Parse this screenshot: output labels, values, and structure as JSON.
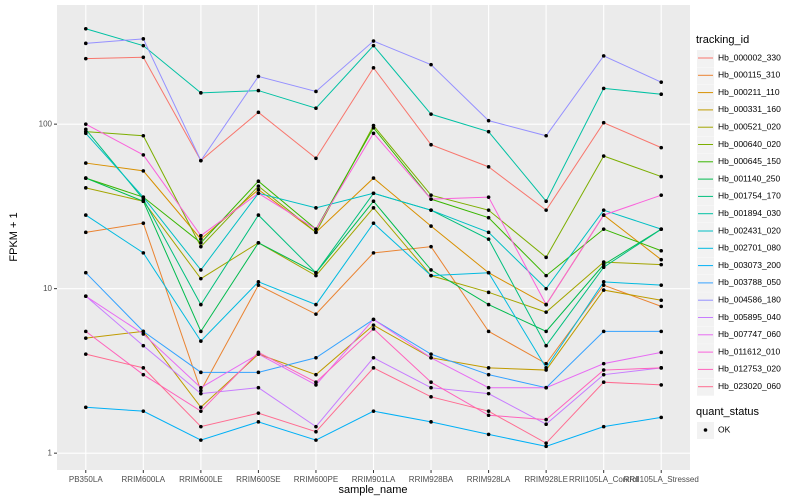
{
  "chart_data": {
    "type": "line",
    "x_label": "sample_name",
    "y_label": "FPKM + 1",
    "categories": [
      "PB350LA",
      "RRIM600LA",
      "RRIM600LE",
      "RRIM600SE",
      "RRIM600PE",
      "RRIM901LA",
      "RRIM928BA",
      "RRIM928LA",
      "RRIM928LE",
      "RRII105LA_Control",
      "RRII105LA_Stressed"
    ],
    "log_y": true,
    "grid": true,
    "legend_position": "right",
    "legend_title": "tracking_id",
    "ylim": [
      0.79,
      530
    ],
    "yticks": [
      1,
      10,
      100
    ],
    "point_color": "#000000",
    "series": [
      {
        "name": "Hb_000002_330",
        "color": "#F8766D",
        "values": [
          250,
          255,
          60,
          118,
          62,
          220,
          75,
          55,
          30,
          102,
          72
        ]
      },
      {
        "name": "Hb_000115_310",
        "color": "#EA8331",
        "values": [
          22,
          25,
          2.4,
          10.5,
          7,
          16.5,
          18,
          5.5,
          3.5,
          10.5,
          7.8
        ]
      },
      {
        "name": "Hb_000211_110",
        "color": "#D89000",
        "values": [
          58,
          52,
          20,
          40,
          22,
          47,
          24,
          12.5,
          8,
          28,
          15
        ]
      },
      {
        "name": "Hb_000331_160",
        "color": "#C09B00",
        "values": [
          5,
          5.5,
          1.9,
          4,
          3,
          6,
          3.8,
          3.3,
          3.2,
          9.8,
          8.5
        ]
      },
      {
        "name": "Hb_000521_020",
        "color": "#A3A500",
        "values": [
          41,
          34,
          11.5,
          19,
          12,
          31,
          12,
          9.5,
          7.2,
          14.5,
          14
        ]
      },
      {
        "name": "Hb_000640_020",
        "color": "#7CAE00",
        "values": [
          90,
          85,
          18,
          42,
          22,
          98,
          37,
          30,
          15.5,
          64,
          48
        ]
      },
      {
        "name": "Hb_000645_150",
        "color": "#39B600",
        "values": [
          47,
          36,
          19,
          45,
          23,
          95,
          35,
          27,
          12,
          23,
          17
        ]
      },
      {
        "name": "Hb_001140_250",
        "color": "#00BB4E",
        "values": [
          47,
          34,
          5.5,
          19,
          12.5,
          34,
          13,
          8,
          5.5,
          14,
          23
        ]
      },
      {
        "name": "Hb_001754_170",
        "color": "#00BF7D",
        "values": [
          93,
          35,
          8,
          28,
          12.5,
          38,
          30,
          20,
          4.5,
          13.5,
          23
        ]
      },
      {
        "name": "Hb_001894_030",
        "color": "#00C1A3",
        "values": [
          380,
          300,
          155,
          160,
          125,
          300,
          115,
          90,
          34,
          165,
          152
        ]
      },
      {
        "name": "Hb_002431_020",
        "color": "#00BFC4",
        "values": [
          88,
          36,
          13,
          38,
          31,
          38,
          30,
          22,
          10,
          30,
          23
        ]
      },
      {
        "name": "Hb_002701_080",
        "color": "#00BAE0",
        "values": [
          28,
          16.5,
          4.8,
          11,
          8,
          25,
          12,
          12.5,
          3.3,
          11,
          10.5
        ]
      },
      {
        "name": "Hb_003073_200",
        "color": "#00B0F6",
        "values": [
          1.9,
          1.8,
          1.2,
          1.55,
          1.2,
          1.8,
          1.55,
          1.3,
          1.1,
          1.45,
          1.65
        ]
      },
      {
        "name": "Hb_003788_050",
        "color": "#35A2FF",
        "values": [
          12.5,
          5.5,
          3.1,
          3.1,
          3.8,
          6.5,
          4,
          3,
          2.5,
          5.5,
          5.5
        ]
      },
      {
        "name": "Hb_004586_180",
        "color": "#9590FF",
        "values": [
          310,
          330,
          60,
          195,
          158,
          320,
          230,
          105,
          85,
          260,
          180
        ]
      },
      {
        "name": "Hb_005895_040",
        "color": "#C77CFF",
        "values": [
          9,
          4.5,
          2.3,
          2.5,
          1.45,
          3.8,
          2.5,
          2.3,
          1.5,
          3,
          3.3
        ]
      },
      {
        "name": "Hb_007747_060",
        "color": "#E76BF3",
        "values": [
          9,
          5.3,
          2.5,
          4,
          2.6,
          6.5,
          3.8,
          2.5,
          2.5,
          3.5,
          4.1
        ]
      },
      {
        "name": "Hb_011612_010",
        "color": "#FA62DB",
        "values": [
          100,
          65,
          21,
          38,
          23,
          88,
          35,
          36,
          8,
          28,
          37
        ]
      },
      {
        "name": "Hb_012753_020",
        "color": "#FF62BC",
        "values": [
          5.5,
          3,
          1.8,
          4.1,
          2.7,
          5.7,
          2.7,
          1.7,
          1.6,
          3.2,
          3.3
        ]
      },
      {
        "name": "Hb_023020_060",
        "color": "#FF6C91",
        "values": [
          4,
          3.3,
          1.45,
          1.75,
          1.35,
          3.3,
          2.2,
          1.8,
          1.15,
          2.7,
          2.6
        ]
      }
    ],
    "shape_legend": {
      "title": "quant_status",
      "entries": [
        "OK"
      ]
    }
  }
}
